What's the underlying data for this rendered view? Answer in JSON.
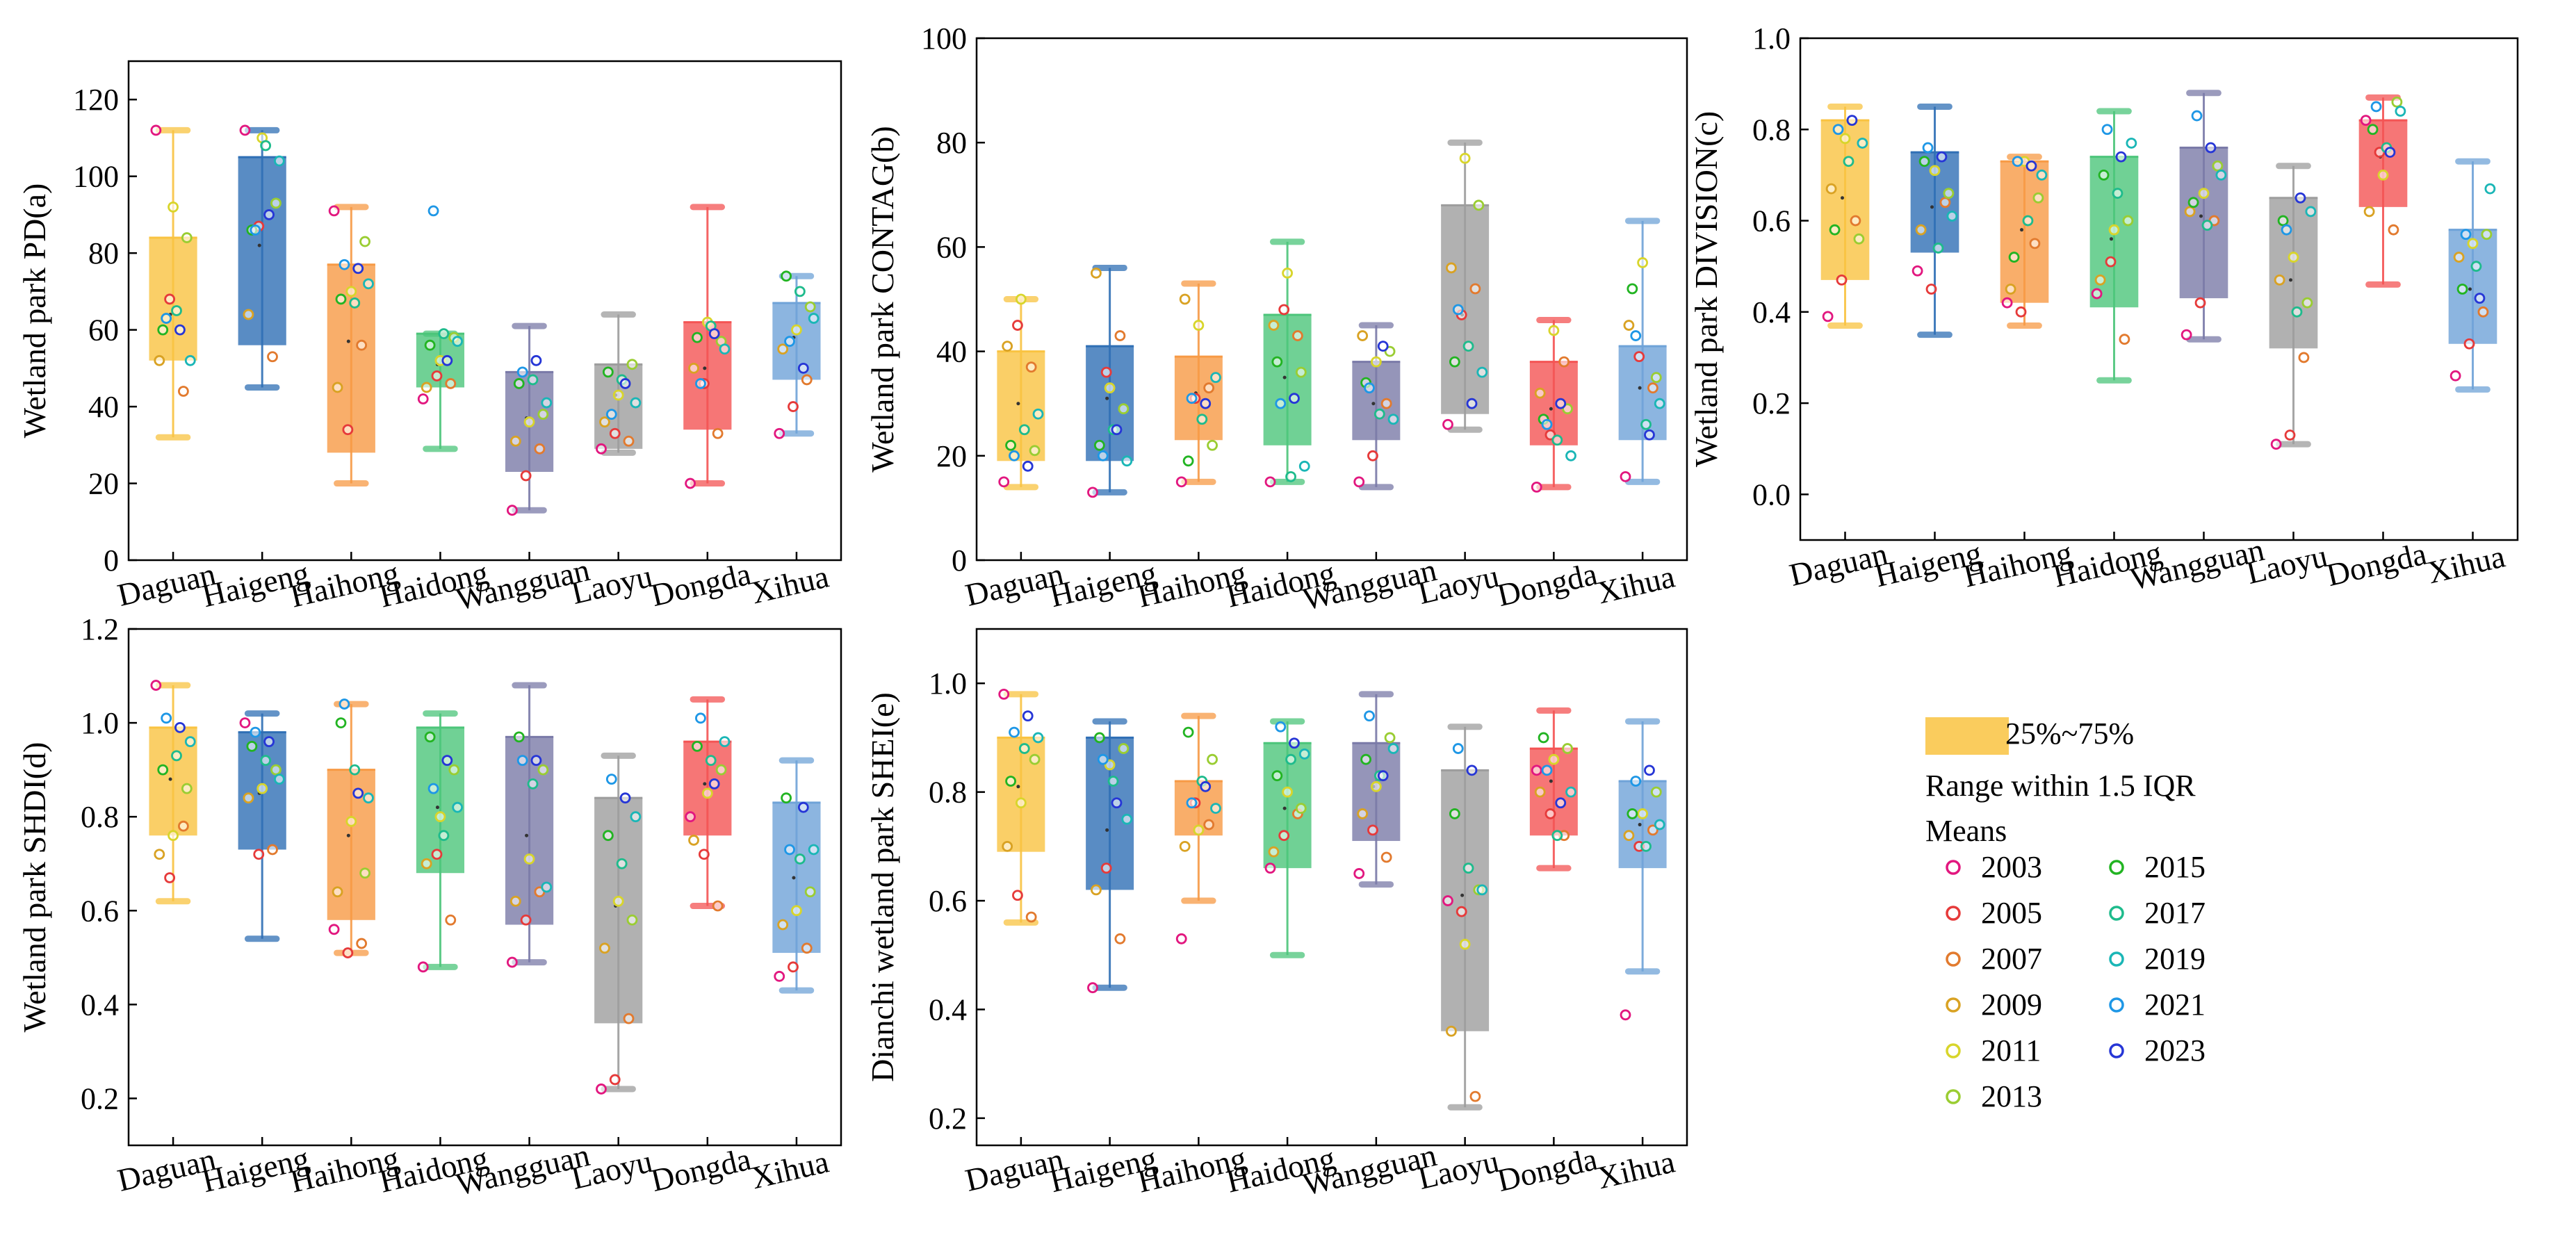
{
  "categories": [
    "Daguan",
    "Haigeng",
    "Haihong",
    "Haidong",
    "Wangguan",
    "Laoyu",
    "Dongda",
    "Xihua"
  ],
  "box_colors": [
    "#F9C341",
    "#2F6FB5",
    "#F79A45",
    "#4CC57A",
    "#7A7AA8",
    "#9D9D9D",
    "#F45454",
    "#6FA3D8"
  ],
  "year_colors": {
    "2003": "#E2177F",
    "2005": "#E63A3A",
    "2007": "#E27A2E",
    "2009": "#D9A223",
    "2011": "#D8D52B",
    "2013": "#9ACD32",
    "2015": "#22B422",
    "2017": "#1EBB8C",
    "2019": "#1AB6B6",
    "2021": "#1E97E6",
    "2023": "#2636D6"
  },
  "legend": {
    "box_label": "25%~75%",
    "range_label": "Range within 1.5 IQR",
    "means_label": "Means",
    "years": [
      "2003",
      "2005",
      "2007",
      "2009",
      "2011",
      "2013",
      "2015",
      "2017",
      "2019",
      "2021",
      "2023"
    ]
  },
  "chart_data": [
    {
      "type": "box",
      "id": "a",
      "ylabel": "Wetland park PD(a)",
      "ylim": [
        0,
        130
      ],
      "yticks": [
        0,
        20,
        40,
        60,
        80,
        100,
        120
      ],
      "boxes": [
        {
          "q1": 52,
          "q3": 84,
          "min": 32,
          "max": 112,
          "mean": 64
        },
        {
          "q1": 56,
          "q3": 105,
          "min": 45,
          "max": 112,
          "mean": 82
        },
        {
          "q1": 28,
          "q3": 77,
          "min": 20,
          "max": 92,
          "mean": 57
        },
        {
          "q1": 45,
          "q3": 59,
          "min": 29,
          "max": 59,
          "mean": 51
        },
        {
          "q1": 23,
          "q3": 49,
          "min": 13,
          "max": 61,
          "mean": 37
        },
        {
          "q1": 29,
          "q3": 51,
          "min": 28,
          "max": 64,
          "mean": 43
        },
        {
          "q1": 34,
          "q3": 62,
          "min": 20,
          "max": 92,
          "mean": 50
        },
        {
          "q1": 47,
          "q3": 67,
          "min": 33,
          "max": 74,
          "mean": 58
        }
      ],
      "points": [
        [
          112,
          68,
          44,
          52,
          92,
          84,
          60,
          65,
          52,
          63,
          60
        ],
        [
          112,
          87,
          53,
          64,
          110,
          93,
          86,
          108,
          104,
          86,
          90
        ],
        [
          91,
          34,
          56,
          45,
          70,
          83,
          68,
          67,
          72,
          77,
          76
        ],
        [
          42,
          48,
          46,
          45,
          52,
          58,
          56,
          59,
          57,
          91,
          52
        ],
        [
          13,
          22,
          29,
          31,
          36,
          38,
          46,
          47,
          41,
          49,
          52
        ],
        [
          29,
          33,
          31,
          36,
          43,
          51,
          49,
          47,
          41,
          38,
          46
        ],
        [
          20,
          46,
          33,
          50,
          62,
          57,
          58,
          61,
          55,
          46,
          59
        ],
        [
          33,
          40,
          47,
          55,
          60,
          66,
          74,
          70,
          63,
          57,
          50
        ]
      ]
    },
    {
      "type": "box",
      "id": "b",
      "ylabel": "Wetland park CONTAG(b)",
      "ylim": [
        0,
        100
      ],
      "yticks": [
        0,
        20,
        40,
        60,
        80,
        100
      ],
      "boxes": [
        {
          "q1": 19,
          "q3": 40,
          "min": 14,
          "max": 50,
          "mean": 30
        },
        {
          "q1": 19,
          "q3": 41,
          "min": 13,
          "max": 56,
          "mean": 31
        },
        {
          "q1": 23,
          "q3": 39,
          "min": 15,
          "max": 53,
          "mean": 32
        },
        {
          "q1": 22,
          "q3": 47,
          "min": 15,
          "max": 61,
          "mean": 35
        },
        {
          "q1": 23,
          "q3": 38,
          "min": 14,
          "max": 45,
          "mean": 30
        },
        {
          "q1": 28,
          "q3": 68,
          "min": 25,
          "max": 80,
          "mean": 47
        },
        {
          "q1": 22,
          "q3": 38,
          "min": 14,
          "max": 46,
          "mean": 29
        },
        {
          "q1": 23,
          "q3": 41,
          "min": 15,
          "max": 65,
          "mean": 33
        }
      ],
      "points": [
        [
          15,
          45,
          37,
          41,
          50,
          21,
          22,
          25,
          28,
          20,
          18
        ],
        [
          13,
          36,
          43,
          55,
          33,
          29,
          22,
          25,
          19,
          20,
          25
        ],
        [
          15,
          31,
          33,
          50,
          45,
          22,
          19,
          27,
          35,
          31,
          30
        ],
        [
          15,
          48,
          43,
          45,
          55,
          36,
          38,
          16,
          18,
          30,
          31
        ],
        [
          15,
          20,
          30,
          43,
          38,
          40,
          34,
          28,
          27,
          33,
          41
        ],
        [
          26,
          47,
          52,
          56,
          77,
          68,
          38,
          41,
          36,
          48,
          30
        ],
        [
          14,
          24,
          38,
          32,
          44,
          29,
          27,
          23,
          20,
          26,
          30
        ],
        [
          16,
          39,
          33,
          45,
          57,
          35,
          52,
          26,
          30,
          43,
          24
        ]
      ]
    },
    {
      "type": "box",
      "id": "c",
      "ylabel": "Wetland park DIVISION(c)",
      "ylim": [
        -0.1,
        1.0
      ],
      "yticks": [
        0.0,
        0.2,
        0.4,
        0.6,
        0.8,
        1.0
      ],
      "boxes": [
        {
          "q1": 0.47,
          "q3": 0.82,
          "min": 0.37,
          "max": 0.85,
          "mean": 0.65
        },
        {
          "q1": 0.53,
          "q3": 0.75,
          "min": 0.35,
          "max": 0.85,
          "mean": 0.63
        },
        {
          "q1": 0.42,
          "q3": 0.73,
          "min": 0.37,
          "max": 0.74,
          "mean": 0.58
        },
        {
          "q1": 0.41,
          "q3": 0.74,
          "min": 0.25,
          "max": 0.84,
          "mean": 0.56
        },
        {
          "q1": 0.43,
          "q3": 0.76,
          "min": 0.34,
          "max": 0.88,
          "mean": 0.61
        },
        {
          "q1": 0.32,
          "q3": 0.65,
          "min": 0.11,
          "max": 0.72,
          "mean": 0.47
        },
        {
          "q1": 0.63,
          "q3": 0.82,
          "min": 0.46,
          "max": 0.87,
          "mean": 0.74
        },
        {
          "q1": 0.33,
          "q3": 0.58,
          "min": 0.23,
          "max": 0.73,
          "mean": 0.45
        }
      ],
      "points": [
        [
          0.39,
          0.47,
          0.6,
          0.67,
          0.78,
          0.56,
          0.58,
          0.73,
          0.77,
          0.8,
          0.82
        ],
        [
          0.49,
          0.45,
          0.64,
          0.58,
          0.71,
          0.66,
          0.73,
          0.54,
          0.61,
          0.76,
          0.74
        ],
        [
          0.42,
          0.4,
          0.55,
          0.45,
          0.73,
          0.65,
          0.52,
          0.6,
          0.7,
          0.73,
          0.72
        ],
        [
          0.44,
          0.51,
          0.34,
          0.47,
          0.58,
          0.6,
          0.7,
          0.66,
          0.77,
          0.8,
          0.74
        ],
        [
          0.35,
          0.42,
          0.6,
          0.62,
          0.66,
          0.72,
          0.64,
          0.59,
          0.7,
          0.83,
          0.76
        ],
        [
          0.11,
          0.13,
          0.3,
          0.47,
          0.52,
          0.42,
          0.6,
          0.4,
          0.62,
          0.58,
          0.65
        ],
        [
          0.82,
          0.75,
          0.58,
          0.62,
          0.7,
          0.86,
          0.8,
          0.76,
          0.84,
          0.85,
          0.75
        ],
        [
          0.26,
          0.33,
          0.4,
          0.52,
          0.55,
          0.57,
          0.45,
          0.5,
          0.67,
          0.57,
          0.43
        ]
      ]
    },
    {
      "type": "box",
      "id": "d",
      "ylabel": "Wetland park SHDI(d)",
      "ylim": [
        0.1,
        1.2
      ],
      "yticks": [
        0.2,
        0.4,
        0.6,
        0.8,
        1.0,
        1.2
      ],
      "boxes": [
        {
          "q1": 0.76,
          "q3": 0.99,
          "min": 0.62,
          "max": 1.08,
          "mean": 0.88
        },
        {
          "q1": 0.73,
          "q3": 0.98,
          "min": 0.54,
          "max": 1.02,
          "mean": 0.85
        },
        {
          "q1": 0.58,
          "q3": 0.9,
          "min": 0.51,
          "max": 1.04,
          "mean": 0.76
        },
        {
          "q1": 0.68,
          "q3": 0.99,
          "min": 0.48,
          "max": 1.02,
          "mean": 0.82
        },
        {
          "q1": 0.57,
          "q3": 0.97,
          "min": 0.49,
          "max": 1.08,
          "mean": 0.76
        },
        {
          "q1": 0.36,
          "q3": 0.84,
          "min": 0.22,
          "max": 0.93,
          "mean": 0.61
        },
        {
          "q1": 0.76,
          "q3": 0.96,
          "min": 0.61,
          "max": 1.05,
          "mean": 0.87
        },
        {
          "q1": 0.51,
          "q3": 0.83,
          "min": 0.43,
          "max": 0.92,
          "mean": 0.67
        }
      ],
      "points": [
        [
          1.08,
          0.67,
          0.78,
          0.72,
          0.76,
          0.86,
          0.9,
          0.93,
          0.96,
          1.01,
          0.99
        ],
        [
          1.0,
          0.72,
          0.73,
          0.84,
          0.86,
          0.9,
          0.95,
          0.92,
          0.88,
          0.98,
          0.96
        ],
        [
          0.56,
          0.51,
          0.53,
          0.64,
          0.79,
          0.68,
          1.0,
          0.9,
          0.84,
          1.04,
          0.85
        ],
        [
          0.48,
          0.72,
          0.58,
          0.7,
          0.8,
          0.9,
          0.97,
          0.76,
          0.82,
          0.86,
          0.92
        ],
        [
          0.49,
          0.58,
          0.64,
          0.62,
          0.71,
          0.9,
          0.97,
          0.87,
          0.65,
          0.92,
          0.92
        ],
        [
          0.22,
          0.24,
          0.37,
          0.52,
          0.62,
          0.58,
          0.76,
          0.7,
          0.8,
          0.88,
          0.84
        ],
        [
          0.8,
          0.72,
          0.61,
          0.75,
          0.85,
          0.9,
          0.95,
          0.92,
          0.96,
          1.01,
          0.87
        ],
        [
          0.46,
          0.48,
          0.52,
          0.57,
          0.6,
          0.64,
          0.84,
          0.71,
          0.73,
          0.73,
          0.82
        ]
      ]
    },
    {
      "type": "box",
      "id": "e",
      "ylabel": "Dianchi wetland park SHEI(e)",
      "ylim": [
        0.15,
        1.1
      ],
      "yticks": [
        0.2,
        0.4,
        0.6,
        0.8,
        1.0
      ],
      "boxes": [
        {
          "q1": 0.69,
          "q3": 0.9,
          "min": 0.56,
          "max": 0.98,
          "mean": 0.81
        },
        {
          "q1": 0.62,
          "q3": 0.9,
          "min": 0.44,
          "max": 0.93,
          "mean": 0.73
        },
        {
          "q1": 0.72,
          "q3": 0.82,
          "min": 0.6,
          "max": 0.94,
          "mean": 0.78
        },
        {
          "q1": 0.66,
          "q3": 0.89,
          "min": 0.5,
          "max": 0.93,
          "mean": 0.77
        },
        {
          "q1": 0.71,
          "q3": 0.89,
          "min": 0.63,
          "max": 0.98,
          "mean": 0.81
        },
        {
          "q1": 0.36,
          "q3": 0.84,
          "min": 0.22,
          "max": 0.92,
          "mean": 0.61
        },
        {
          "q1": 0.72,
          "q3": 0.88,
          "min": 0.66,
          "max": 0.95,
          "mean": 0.82
        },
        {
          "q1": 0.66,
          "q3": 0.82,
          "min": 0.47,
          "max": 0.93,
          "mean": 0.74
        }
      ],
      "points": [
        [
          0.98,
          0.61,
          0.57,
          0.7,
          0.78,
          0.86,
          0.82,
          0.88,
          0.9,
          0.91,
          0.94
        ],
        [
          0.44,
          0.66,
          0.53,
          0.62,
          0.85,
          0.88,
          0.9,
          0.82,
          0.75,
          0.86,
          0.78
        ],
        [
          0.53,
          0.78,
          0.74,
          0.7,
          0.73,
          0.86,
          0.91,
          0.82,
          0.77,
          0.78,
          0.81
        ],
        [
          0.66,
          0.72,
          0.76,
          0.69,
          0.8,
          0.77,
          0.83,
          0.86,
          0.87,
          0.92,
          0.89
        ],
        [
          0.65,
          0.73,
          0.68,
          0.76,
          0.81,
          0.9,
          0.86,
          0.83,
          0.88,
          0.94,
          0.83
        ],
        [
          0.6,
          0.58,
          0.24,
          0.36,
          0.52,
          0.62,
          0.76,
          0.66,
          0.62,
          0.88,
          0.84
        ],
        [
          0.84,
          0.76,
          0.72,
          0.8,
          0.86,
          0.88,
          0.9,
          0.72,
          0.8,
          0.84,
          0.78
        ],
        [
          0.39,
          0.7,
          0.73,
          0.72,
          0.76,
          0.8,
          0.76,
          0.7,
          0.74,
          0.82,
          0.84
        ]
      ]
    }
  ]
}
